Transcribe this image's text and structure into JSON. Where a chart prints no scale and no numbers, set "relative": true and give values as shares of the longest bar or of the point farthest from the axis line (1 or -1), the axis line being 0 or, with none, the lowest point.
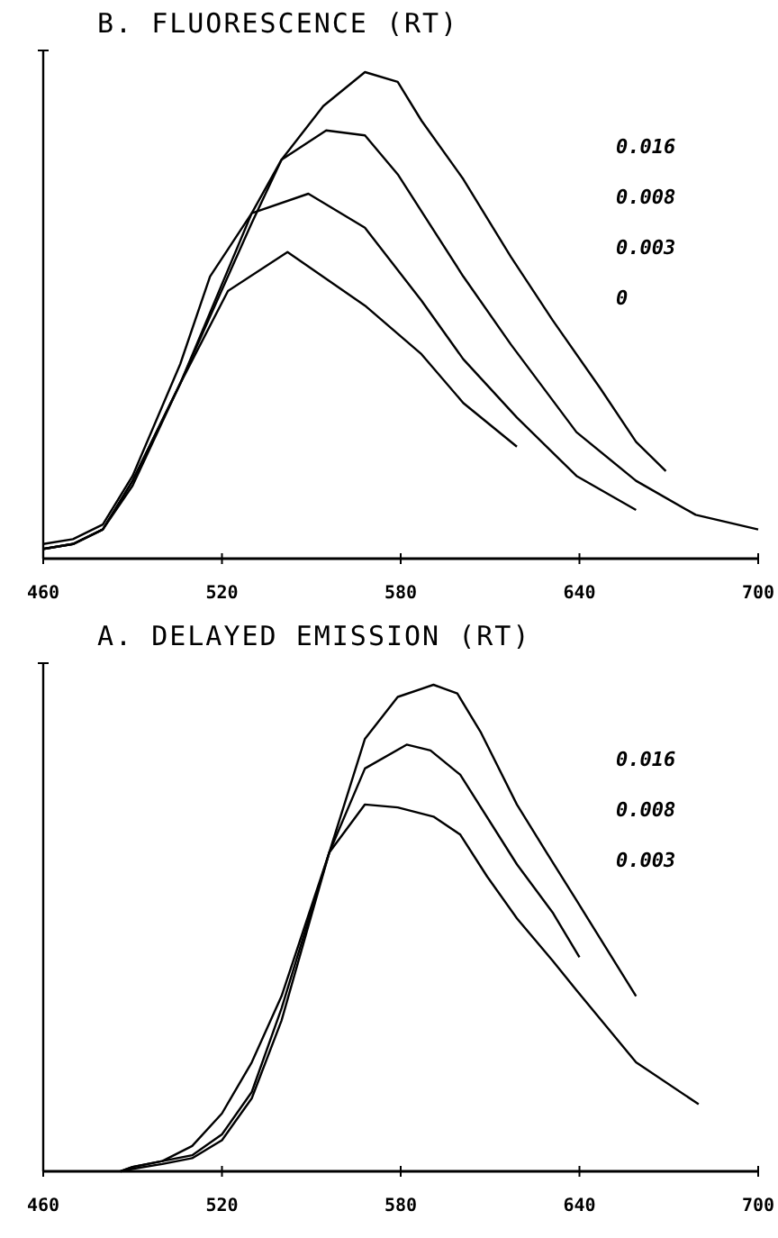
{
  "chart_data": [
    {
      "type": "line",
      "title": "B.  FLUORESCENCE (RT)",
      "relative": true,
      "xlim": [
        460,
        700
      ],
      "xticks": [
        460,
        520,
        580,
        640,
        700
      ],
      "annotations": [
        "0.016",
        "0.008",
        "0.003",
        "0"
      ],
      "series": [
        {
          "color": "#000000",
          "x": [
            460,
            470,
            480,
            490,
            506,
            530,
            540,
            554,
            568,
            579,
            587,
            601,
            617,
            631,
            647,
            659,
            669
          ],
          "values": [
            0.02,
            0.03,
            0.06,
            0.16,
            0.36,
            0.69,
            0.82,
            0.93,
            1,
            0.98,
            0.9,
            0.78,
            0.62,
            0.49,
            0.35,
            0.24,
            0.18
          ]
        },
        {
          "color": "#000000",
          "x": [
            460,
            470,
            480,
            490,
            506,
            530,
            540,
            555,
            568,
            579,
            601,
            617,
            639,
            659,
            679,
            700
          ],
          "values": [
            0.02,
            0.03,
            0.06,
            0.16,
            0.36,
            0.71,
            0.82,
            0.88,
            0.87,
            0.79,
            0.58,
            0.44,
            0.26,
            0.16,
            0.09,
            0.06
          ]
        },
        {
          "color": "#000000",
          "x": [
            460,
            470,
            480,
            490,
            506,
            516,
            530,
            549,
            568,
            587,
            601,
            619,
            639,
            659
          ],
          "values": [
            0.03,
            0.04,
            0.07,
            0.17,
            0.4,
            0.58,
            0.71,
            0.75,
            0.68,
            0.53,
            0.41,
            0.29,
            0.17,
            0.1
          ]
        },
        {
          "color": "#000000",
          "x": [
            460,
            470,
            480,
            490,
            506,
            522,
            542,
            568,
            587,
            601,
            619
          ],
          "values": [
            0.02,
            0.03,
            0.06,
            0.15,
            0.36,
            0.55,
            0.63,
            0.52,
            0.42,
            0.32,
            0.23
          ]
        }
      ]
    },
    {
      "type": "line",
      "title": "A.  DELAYED EMISSION (RT)",
      "relative": true,
      "xlim": [
        460,
        700
      ],
      "xticks": [
        460,
        520,
        580,
        640,
        700
      ],
      "annotations": [
        "0.016",
        "0.008",
        "0.003"
      ],
      "series": [
        {
          "color": "#000000",
          "x": [
            486,
            490,
            500,
            510,
            520,
            530,
            540,
            556,
            568,
            579,
            591,
            599,
            607,
            619,
            629,
            639,
            659
          ],
          "values": [
            0,
            0.005,
            0.015,
            0.027,
            0.064,
            0.15,
            0.31,
            0.655,
            0.889,
            0.975,
            1,
            0.982,
            0.901,
            0.754,
            0.655,
            0.557,
            0.36
          ]
        },
        {
          "color": "#000000",
          "x": [
            486,
            490,
            500,
            510,
            520,
            530,
            540,
            556,
            568,
            582,
            590,
            600,
            619,
            631,
            640
          ],
          "values": [
            0,
            0.009,
            0.021,
            0.033,
            0.076,
            0.163,
            0.335,
            0.655,
            0.828,
            0.877,
            0.865,
            0.815,
            0.631,
            0.532,
            0.44
          ]
        },
        {
          "color": "#000000",
          "x": [
            486,
            490,
            500,
            510,
            520,
            530,
            540,
            556,
            568,
            579,
            591,
            600,
            609,
            619,
            631,
            639,
            649,
            659,
            680
          ],
          "values": [
            0,
            0.009,
            0.021,
            0.052,
            0.119,
            0.224,
            0.36,
            0.655,
            0.754,
            0.748,
            0.729,
            0.692,
            0.606,
            0.52,
            0.433,
            0.372,
            0.298,
            0.224,
            0.138
          ]
        }
      ]
    }
  ]
}
